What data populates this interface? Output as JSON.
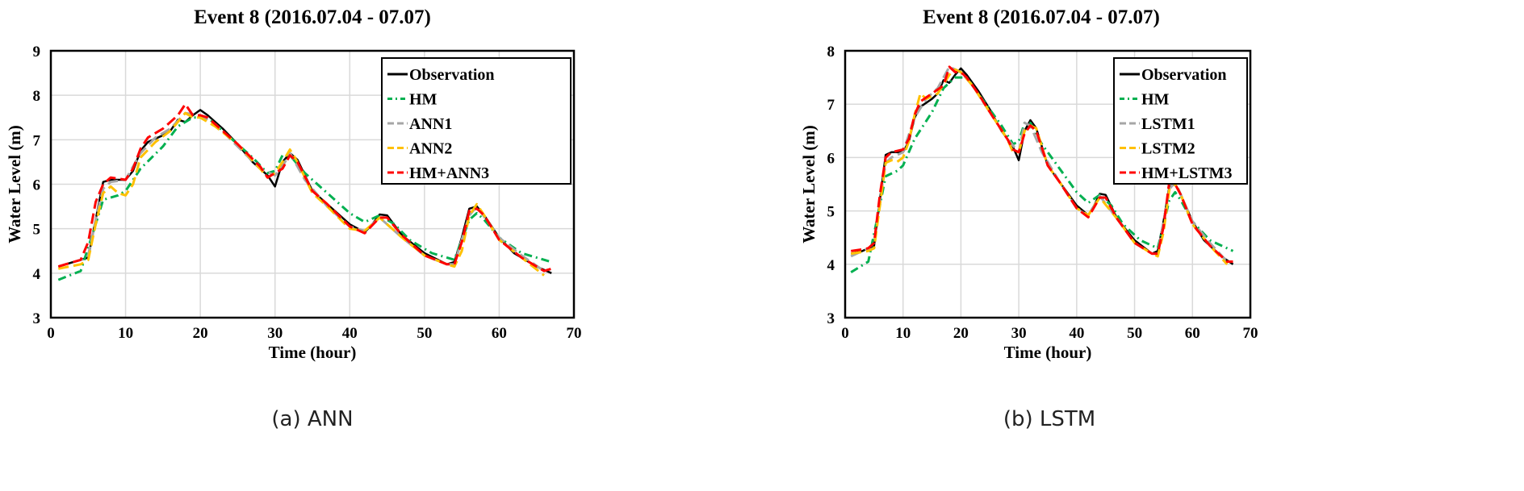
{
  "captions": [
    "(a) ANN",
    "(b) LSTM"
  ],
  "chart_data": [
    {
      "type": "line",
      "title": "Event 8 (2016.07.04 - 07.07)",
      "xlabel": "Time (hour)",
      "ylabel": "Water Level (m)",
      "xlim": [
        0,
        70
      ],
      "ylim": [
        3,
        9
      ],
      "xticks": [
        0,
        10,
        20,
        30,
        40,
        50,
        60,
        70
      ],
      "yticks": [
        3,
        4,
        5,
        6,
        7,
        8,
        9
      ],
      "grid": true,
      "legend": "top-right",
      "series": [
        {
          "name": "Observation",
          "color": "#000000",
          "dash": "solid",
          "x": [
            1,
            3,
            5,
            6,
            7,
            8,
            10,
            11,
            12,
            13,
            15,
            16,
            17,
            18,
            19,
            20,
            21,
            23,
            25,
            27,
            29,
            30,
            31,
            32,
            33,
            35,
            37,
            40,
            42,
            43,
            44,
            45,
            47,
            50,
            53,
            54,
            55,
            56,
            57,
            58,
            60,
            62,
            65,
            67
          ],
          "y": [
            4.15,
            4.25,
            4.35,
            5.2,
            6.05,
            6.1,
            6.1,
            6.3,
            6.75,
            6.95,
            7.1,
            7.2,
            7.45,
            7.4,
            7.55,
            7.67,
            7.55,
            7.25,
            6.9,
            6.5,
            6.2,
            5.95,
            6.5,
            6.7,
            6.55,
            5.85,
            5.55,
            5.1,
            4.92,
            5.1,
            5.32,
            5.3,
            4.85,
            4.45,
            4.2,
            4.25,
            4.8,
            5.45,
            5.5,
            5.3,
            4.8,
            4.45,
            4.15,
            4.0
          ]
        },
        {
          "name": "HM",
          "color": "#00b050",
          "dash": "dashdot",
          "x": [
            1,
            4,
            6,
            7,
            9,
            10,
            12,
            15,
            17,
            19,
            21,
            24,
            27,
            29,
            30,
            31,
            32,
            34,
            37,
            40,
            42,
            44,
            46,
            48,
            51,
            54,
            55,
            56,
            57,
            58,
            60,
            63,
            67
          ],
          "y": [
            3.85,
            4.05,
            5.1,
            5.65,
            5.75,
            5.85,
            6.35,
            6.85,
            7.3,
            7.5,
            7.5,
            7.05,
            6.6,
            6.25,
            6.3,
            6.65,
            6.65,
            6.25,
            5.8,
            5.35,
            5.15,
            5.3,
            5.1,
            4.75,
            4.45,
            4.3,
            4.75,
            5.2,
            5.35,
            5.2,
            4.8,
            4.45,
            4.25
          ]
        },
        {
          "name": "ANN1",
          "color": "#a6a6a6",
          "dash": "longdash",
          "x": [
            1,
            4,
            5,
            6,
            7,
            8,
            10,
            12,
            14,
            16,
            18,
            20,
            22,
            25,
            28,
            30,
            31,
            32,
            34,
            37,
            40,
            42,
            44,
            47,
            50,
            53,
            54,
            56,
            57,
            60,
            63,
            66
          ],
          "y": [
            4.15,
            4.3,
            4.4,
            5.2,
            5.9,
            6.05,
            6.1,
            6.7,
            7.05,
            7.25,
            7.6,
            7.55,
            7.35,
            6.85,
            6.35,
            6.2,
            6.4,
            6.7,
            6.1,
            5.5,
            5.05,
            4.95,
            5.25,
            4.8,
            4.4,
            4.2,
            4.2,
            5.3,
            5.5,
            4.8,
            4.4,
            4.05
          ]
        },
        {
          "name": "ANN2",
          "color": "#ffc000",
          "dash": "longdash",
          "x": [
            1,
            4,
            5,
            6,
            7,
            8,
            9,
            10,
            11,
            12,
            14,
            16,
            18,
            19,
            20,
            22,
            25,
            28,
            29,
            30,
            31,
            32,
            33,
            35,
            37,
            40,
            42,
            44,
            47,
            50,
            53,
            54,
            55,
            56,
            57,
            58,
            60,
            63,
            66
          ],
          "y": [
            4.1,
            4.2,
            4.3,
            5.1,
            5.8,
            5.95,
            5.8,
            5.75,
            6.0,
            6.6,
            6.95,
            7.2,
            7.6,
            7.5,
            7.5,
            7.3,
            6.9,
            6.35,
            6.15,
            6.25,
            6.5,
            6.78,
            6.5,
            5.8,
            5.5,
            5.0,
            4.95,
            5.25,
            4.8,
            4.4,
            4.2,
            4.15,
            4.5,
            5.3,
            5.55,
            5.3,
            4.75,
            4.35,
            3.95
          ]
        },
        {
          "name": "HM+ANN3",
          "color": "#ff0000",
          "dash": "longdash",
          "x": [
            1,
            3,
            4,
            5,
            6,
            7,
            8,
            10,
            11,
            12,
            13,
            15,
            17,
            18,
            19,
            20,
            21,
            23,
            25,
            28,
            29,
            30,
            31,
            32,
            33,
            35,
            37,
            40,
            42,
            44,
            45,
            47,
            50,
            53,
            54,
            55,
            56,
            57,
            58,
            60,
            63,
            66,
            67
          ],
          "y": [
            4.15,
            4.25,
            4.3,
            4.7,
            5.6,
            6.0,
            6.15,
            6.1,
            6.35,
            6.8,
            7.05,
            7.25,
            7.55,
            7.8,
            7.55,
            7.55,
            7.5,
            7.2,
            6.9,
            6.4,
            6.15,
            6.25,
            6.35,
            6.65,
            6.5,
            5.85,
            5.55,
            5.05,
            4.9,
            5.25,
            5.25,
            4.85,
            4.4,
            4.2,
            4.2,
            4.7,
            5.4,
            5.45,
            5.3,
            4.75,
            4.35,
            4.05,
            4.1
          ]
        }
      ]
    },
    {
      "type": "line",
      "title": "Event 8 (2016.07.04 - 07.07)",
      "xlabel": "Time (hour)",
      "ylabel": "Water Level (m)",
      "xlim": [
        0,
        70
      ],
      "ylim": [
        3,
        8
      ],
      "xticks": [
        0,
        10,
        20,
        30,
        40,
        50,
        60,
        70
      ],
      "yticks": [
        3,
        4,
        5,
        6,
        7,
        8
      ],
      "grid": true,
      "legend": "top-right",
      "series": [
        {
          "name": "Observation",
          "color": "#000000",
          "dash": "solid",
          "x": [
            1,
            3,
            5,
            6,
            7,
            8,
            10,
            11,
            12,
            13,
            15,
            16,
            17,
            18,
            19,
            20,
            21,
            23,
            25,
            27,
            29,
            30,
            31,
            32,
            33,
            35,
            37,
            40,
            42,
            43,
            44,
            45,
            47,
            50,
            53,
            54,
            55,
            56,
            57,
            58,
            60,
            62,
            65,
            67
          ],
          "y": [
            4.2,
            4.25,
            4.35,
            5.2,
            6.05,
            6.1,
            6.1,
            6.3,
            6.75,
            6.95,
            7.1,
            7.2,
            7.45,
            7.4,
            7.55,
            7.67,
            7.55,
            7.25,
            6.9,
            6.5,
            6.2,
            5.95,
            6.5,
            6.7,
            6.55,
            5.85,
            5.55,
            5.1,
            4.92,
            5.1,
            5.32,
            5.3,
            4.85,
            4.45,
            4.2,
            4.25,
            4.8,
            5.45,
            5.5,
            5.3,
            4.8,
            4.45,
            4.15,
            4.0
          ]
        },
        {
          "name": "HM",
          "color": "#00b050",
          "dash": "dashdot",
          "x": [
            1,
            4,
            6,
            7,
            9,
            10,
            12,
            15,
            17,
            19,
            21,
            24,
            27,
            29,
            30,
            31,
            32,
            34,
            37,
            40,
            42,
            44,
            46,
            48,
            51,
            54,
            55,
            56,
            57,
            58,
            60,
            63,
            67
          ],
          "y": [
            3.85,
            4.05,
            5.1,
            5.65,
            5.75,
            5.85,
            6.35,
            6.85,
            7.3,
            7.5,
            7.5,
            7.05,
            6.6,
            6.25,
            6.3,
            6.65,
            6.65,
            6.25,
            5.8,
            5.35,
            5.15,
            5.3,
            5.1,
            4.75,
            4.45,
            4.3,
            4.75,
            5.2,
            5.35,
            5.2,
            4.8,
            4.45,
            4.25
          ]
        },
        {
          "name": "LSTM1",
          "color": "#a6a6a6",
          "dash": "longdash",
          "x": [
            1,
            4,
            5,
            6,
            7,
            8,
            10,
            12,
            14,
            16,
            18,
            20,
            22,
            25,
            28,
            30,
            31,
            32,
            34,
            37,
            40,
            42,
            44,
            47,
            50,
            53,
            54,
            56,
            57,
            60,
            63,
            66
          ],
          "y": [
            4.15,
            4.3,
            4.4,
            5.2,
            5.9,
            6.0,
            6.1,
            6.75,
            7.1,
            7.3,
            7.7,
            7.6,
            7.35,
            6.85,
            6.35,
            6.1,
            6.65,
            6.6,
            6.1,
            5.55,
            5.05,
            4.9,
            5.28,
            4.85,
            4.4,
            4.2,
            4.2,
            5.4,
            5.55,
            4.8,
            4.4,
            4.05
          ]
        },
        {
          "name": "LSTM2",
          "color": "#ffc000",
          "dash": "longdash",
          "x": [
            1,
            4,
            5,
            6,
            7,
            8,
            9,
            10,
            11,
            12,
            13,
            14,
            16,
            18,
            19,
            20,
            22,
            25,
            28,
            29,
            30,
            31,
            32,
            33,
            35,
            37,
            40,
            42,
            44,
            47,
            50,
            53,
            54,
            55,
            56,
            57,
            58,
            60,
            63,
            66
          ],
          "y": [
            4.2,
            4.25,
            4.3,
            5.1,
            5.9,
            5.95,
            5.92,
            6.0,
            6.3,
            6.8,
            7.2,
            7.1,
            7.2,
            7.55,
            7.65,
            7.6,
            7.35,
            6.85,
            6.35,
            6.1,
            6.1,
            6.5,
            6.6,
            6.55,
            5.85,
            5.55,
            5.05,
            4.92,
            5.25,
            4.85,
            4.4,
            4.2,
            4.15,
            4.6,
            5.4,
            5.5,
            5.3,
            4.75,
            4.35,
            4.0
          ]
        },
        {
          "name": "HM+LSTM3",
          "color": "#ff0000",
          "dash": "longdash",
          "x": [
            1,
            3,
            4,
            5,
            6,
            7,
            8,
            10,
            11,
            12,
            13,
            15,
            17,
            18,
            19,
            20,
            21,
            23,
            25,
            28,
            29,
            30,
            31,
            32,
            33,
            35,
            37,
            40,
            42,
            44,
            45,
            47,
            50,
            53,
            54,
            55,
            56,
            57,
            58,
            60,
            63,
            66,
            67
          ],
          "y": [
            4.25,
            4.28,
            4.3,
            4.4,
            5.3,
            6.0,
            6.1,
            6.15,
            6.35,
            6.8,
            7.05,
            7.2,
            7.35,
            7.7,
            7.6,
            7.6,
            7.5,
            7.2,
            6.85,
            6.35,
            6.15,
            6.1,
            6.45,
            6.6,
            6.5,
            5.85,
            5.55,
            5.05,
            4.88,
            5.25,
            5.25,
            4.85,
            4.4,
            4.2,
            4.2,
            4.7,
            5.55,
            5.5,
            5.3,
            4.75,
            4.35,
            4.05,
            4.05
          ]
        }
      ]
    }
  ]
}
